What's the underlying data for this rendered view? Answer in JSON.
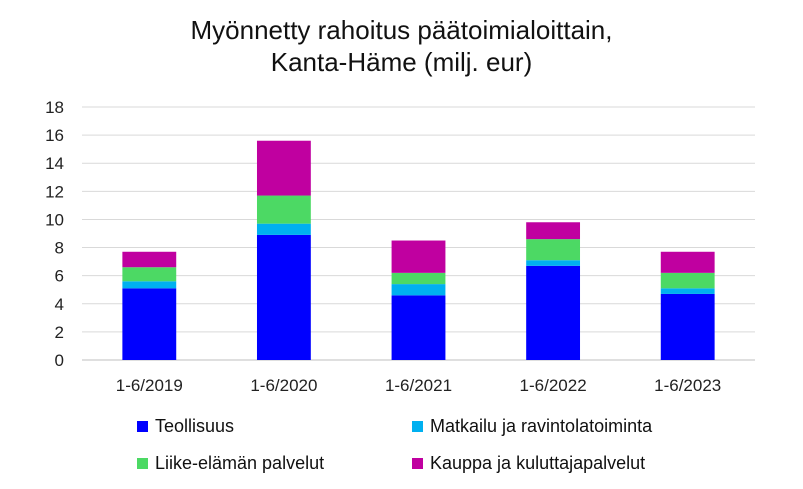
{
  "chart_data": {
    "type": "bar",
    "stacked": true,
    "title": "Myönnetty rahoitus päätoimialoittain, Kanta-Häme (milj. eur)",
    "title_lines": [
      "Myönnetty rahoitus päätoimialoittain,",
      "Kanta-Häme (milj. eur)"
    ],
    "categories": [
      "1-6/2019",
      "1-6/2020",
      "1-6/2021",
      "1-6/2022",
      "1-6/2023"
    ],
    "series": [
      {
        "name": "Teollisuus",
        "color": "#0000ff",
        "values": [
          5.1,
          8.9,
          4.6,
          6.7,
          4.7
        ]
      },
      {
        "name": "Matkailu ja ravintolatoiminta",
        "color": "#00b0f0",
        "values": [
          0.5,
          0.8,
          0.8,
          0.4,
          0.4
        ]
      },
      {
        "name": "Liike-elämän palvelut",
        "color": "#4cd964",
        "values": [
          1.0,
          2.0,
          0.8,
          1.5,
          1.1
        ]
      },
      {
        "name": "Kauppa ja kuluttajapalvelut",
        "color": "#c000a0",
        "values": [
          1.1,
          3.9,
          2.3,
          1.2,
          1.5
        ]
      }
    ],
    "ylim": [
      0,
      18
    ],
    "yticks": [
      0,
      2,
      4,
      6,
      8,
      10,
      12,
      14,
      16,
      18
    ],
    "xlabel": "",
    "ylabel": "",
    "grid": true,
    "legend_position": "bottom"
  }
}
